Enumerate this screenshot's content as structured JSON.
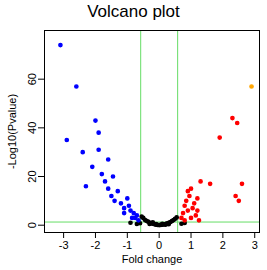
{
  "chart_data": {
    "type": "scatter",
    "title": "Volcano plot",
    "x_label": "Fold change",
    "y_label": "-Log10(Pvalue)",
    "xlim": [
      -3.6,
      3.15
    ],
    "ylim": [
      -3,
      80
    ],
    "xticks": [
      -3,
      -2,
      -1,
      0,
      1,
      2,
      3
    ],
    "yticks": [
      0,
      20,
      40,
      60
    ],
    "grid": false,
    "thresholds": {
      "color": "#66dd66",
      "x": [
        -0.58,
        0.58
      ],
      "y": [
        1.3
      ]
    },
    "series": [
      {
        "color": "#000000",
        "marker": "circle",
        "x": [
          -0.5,
          -0.45,
          -0.4,
          -0.35,
          -0.3,
          -0.25,
          -0.2,
          -0.15,
          -0.1,
          -0.05,
          0,
          0.05,
          0.1,
          0.15,
          0.2,
          0.25,
          0.3,
          0.35,
          0.4,
          0.45,
          0.5,
          0.55,
          -0.55,
          -0.6,
          -0.7,
          0.7,
          0.8,
          -0.9,
          -0.3,
          0.2,
          0.1,
          -0.1,
          0.3,
          -0.2
        ],
        "values": [
          3,
          2.2,
          1.8,
          1.5,
          1.1,
          0.8,
          0.6,
          0.4,
          0.2,
          0.1,
          0.05,
          0.1,
          0.2,
          0.3,
          0.5,
          0.8,
          1.0,
          1.3,
          1.7,
          2.1,
          2.6,
          3.2,
          3.5,
          0.8,
          0.5,
          0.6,
          0.9,
          1.0,
          0.5,
          0.2,
          0.6,
          0.5,
          0.4,
          1.2
        ]
      },
      {
        "color": "#0000ff",
        "marker": "circle",
        "x": [
          -3.1,
          -2.6,
          -2.9,
          -2.4,
          -2.3,
          -2.0,
          -1.9,
          -2.1,
          -1.8,
          -1.7,
          -1.6,
          -1.5,
          -1.4,
          -1.3,
          -1.2,
          -1.1,
          -1.0,
          -0.9,
          -0.8,
          -0.75,
          -0.7,
          -0.65,
          -1.6,
          -1.9,
          -1.45,
          -1.1,
          -0.95,
          -0.85
        ],
        "values": [
          74,
          57,
          35,
          30,
          16,
          43,
          38,
          24,
          21,
          18,
          15,
          12,
          10,
          14,
          9,
          7,
          11,
          6,
          5,
          3,
          4,
          2,
          27,
          31,
          20,
          5,
          8,
          3
        ]
      },
      {
        "color": "#ff0000",
        "marker": "circle",
        "x": [
          0.7,
          0.75,
          0.8,
          0.85,
          0.9,
          0.95,
          1.0,
          1.05,
          1.1,
          1.15,
          1.2,
          1.3,
          0.8,
          1.0,
          0.9,
          1.2,
          1.25,
          2.4,
          2.5,
          2.3,
          2.45,
          2.6,
          1.9,
          1.6
        ],
        "values": [
          3,
          5,
          8,
          10,
          6,
          12,
          15,
          7,
          9,
          4,
          11,
          18,
          2,
          3,
          14,
          6,
          2,
          12,
          10,
          44,
          42,
          17,
          36,
          17
        ]
      },
      {
        "color": "#ffa500",
        "marker": "circle",
        "x": [
          2.9
        ],
        "values": [
          57
        ]
      }
    ]
  }
}
